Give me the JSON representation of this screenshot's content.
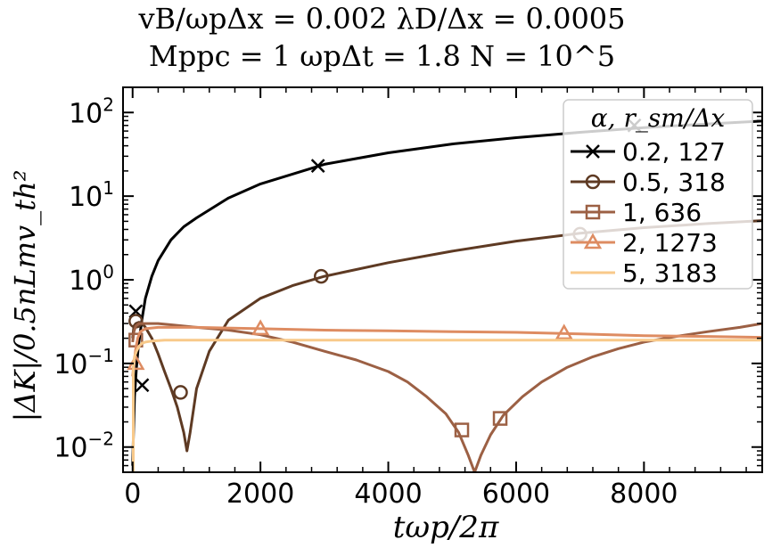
{
  "chart_data": {
    "type": "line",
    "title_line1": "vB/ωpΔx = 0.002   λD/Δx = 0.0005",
    "title_line2": "Mppc = 1   ωpΔt = 1.8   N = 10^5",
    "xlabel": "tωp/2π",
    "ylabel": "|ΔK|/0.5nLmv_th²",
    "xlim": [
      -150,
      9850
    ],
    "ylim": [
      0.005,
      200
    ],
    "yscale": "log",
    "xticks": [
      0,
      2000,
      4000,
      6000,
      8000
    ],
    "xtick_labels": [
      "0",
      "2000",
      "4000",
      "6000",
      "8000"
    ],
    "yticks": [
      0.01,
      0.1,
      1,
      10,
      100
    ],
    "ytick_labels": [
      {
        "base": "10",
        "exp": "−2"
      },
      {
        "base": "10",
        "exp": "−1"
      },
      {
        "base": "10",
        "exp": "0"
      },
      {
        "base": "10",
        "exp": "1"
      },
      {
        "base": "10",
        "exp": "2"
      }
    ],
    "legend_title": "α, r_sm/Δx",
    "legend_position": "top-right",
    "series": [
      {
        "name": "0.2, 127",
        "color": "#000000",
        "marker": "x",
        "x": [
          0,
          10,
          30,
          60,
          90,
          120,
          150,
          200,
          300,
          400,
          600,
          800,
          1000,
          1500,
          2000,
          3000,
          4000,
          5000,
          6000,
          7000,
          8000,
          9000,
          9850
        ],
        "y": [
          0.006,
          0.012,
          0.04,
          0.09,
          0.16,
          0.24,
          0.35,
          0.6,
          1.1,
          1.7,
          3.0,
          4.3,
          5.5,
          9.5,
          14,
          24,
          33,
          42,
          50,
          58,
          66,
          73,
          79
        ],
        "markers": [
          [
            50,
            0.42
          ],
          [
            150,
            0.055
          ],
          [
            2900,
            23
          ],
          [
            7850,
            70
          ]
        ]
      },
      {
        "name": "0.5, 318",
        "color": "#5e3a23",
        "marker": "o",
        "x": [
          0,
          20,
          50,
          100,
          150,
          200,
          300,
          400,
          500,
          600,
          700,
          800,
          850,
          900,
          1000,
          1200,
          1500,
          2000,
          2500,
          3000,
          4000,
          5000,
          6000,
          7000,
          8000,
          9000,
          9850
        ],
        "y": [
          0.2,
          0.28,
          0.3,
          0.31,
          0.3,
          0.27,
          0.2,
          0.13,
          0.08,
          0.05,
          0.03,
          0.015,
          0.009,
          0.015,
          0.05,
          0.14,
          0.33,
          0.6,
          0.85,
          1.1,
          1.6,
          2.2,
          2.9,
          3.6,
          4.2,
          4.7,
          5.1
        ],
        "markers": [
          [
            50,
            0.32
          ],
          [
            750,
            0.045
          ],
          [
            2950,
            1.1
          ],
          [
            7000,
            3.5
          ]
        ]
      },
      {
        "name": "1, 636",
        "color": "#9c6044",
        "marker": "s",
        "x": [
          0,
          20,
          50,
          100,
          200,
          400,
          600,
          1000,
          1500,
          2000,
          2500,
          3000,
          3500,
          4000,
          4300,
          4600,
          4900,
          5100,
          5250,
          5350,
          5450,
          5600,
          5800,
          6100,
          6400,
          6800,
          7200,
          7600,
          8000,
          8500,
          9000,
          9500,
          9850
        ],
        "y": [
          0.18,
          0.24,
          0.28,
          0.3,
          0.3,
          0.3,
          0.29,
          0.27,
          0.25,
          0.22,
          0.18,
          0.14,
          0.11,
          0.08,
          0.06,
          0.04,
          0.025,
          0.015,
          0.008,
          0.005,
          0.008,
          0.014,
          0.024,
          0.04,
          0.06,
          0.09,
          0.12,
          0.15,
          0.18,
          0.21,
          0.24,
          0.27,
          0.3
        ],
        "markers": [
          [
            50,
            0.19
          ],
          [
            5150,
            0.016
          ],
          [
            5750,
            0.022
          ]
        ]
      },
      {
        "name": "2, 1273",
        "color": "#de8c62",
        "marker": "^",
        "x": [
          0,
          20,
          50,
          80,
          120,
          200,
          400,
          1000,
          2000,
          3000,
          4000,
          5000,
          6000,
          7000,
          8000,
          9000,
          9850
        ],
        "y": [
          0.07,
          0.1,
          0.15,
          0.2,
          0.24,
          0.26,
          0.27,
          0.27,
          0.26,
          0.25,
          0.245,
          0.24,
          0.235,
          0.225,
          0.215,
          0.21,
          0.205
        ],
        "markers": [
          [
            50,
            0.1
          ],
          [
            2000,
            0.26
          ],
          [
            6750,
            0.23
          ]
        ]
      },
      {
        "name": "5, 3183",
        "color": "#f8c98a",
        "marker": "none",
        "x": [
          10,
          11,
          15,
          30,
          60,
          100,
          150,
          200,
          300,
          500,
          1000,
          2000,
          4000,
          6000,
          8000,
          9850
        ],
        "y": [
          0.005,
          0.08,
          0.1,
          0.12,
          0.14,
          0.16,
          0.175,
          0.18,
          0.185,
          0.19,
          0.19,
          0.19,
          0.19,
          0.19,
          0.19,
          0.19
        ],
        "markers": []
      }
    ]
  }
}
